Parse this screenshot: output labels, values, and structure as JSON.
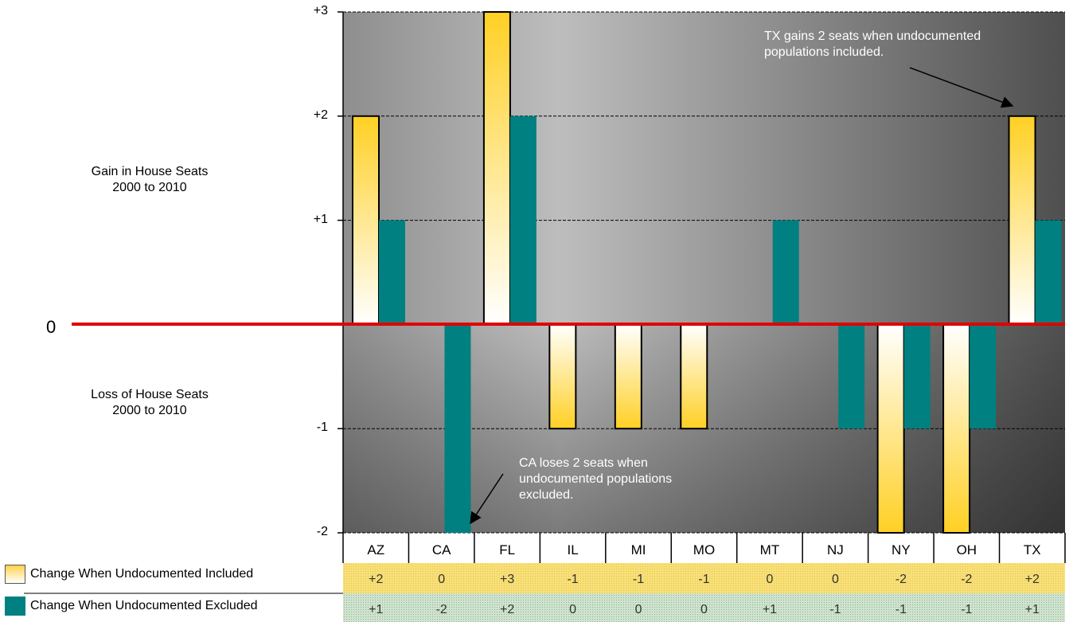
{
  "chart_data": {
    "type": "bar",
    "categories": [
      "AZ",
      "CA",
      "FL",
      "IL",
      "MI",
      "MO",
      "MT",
      "NJ",
      "NY",
      "OH",
      "TX"
    ],
    "series": [
      {
        "name": "Change When Undocumented Included",
        "values": [
          2,
          0,
          3,
          -1,
          -1,
          -1,
          0,
          0,
          -2,
          -2,
          2
        ],
        "labels": [
          "+2",
          "0",
          "+3",
          "-1",
          "-1",
          "-1",
          "0",
          "0",
          "-2",
          "-2",
          "+2"
        ]
      },
      {
        "name": "Change When Undocumented Excluded",
        "values": [
          1,
          -2,
          2,
          0,
          0,
          0,
          1,
          -1,
          -1,
          -1,
          1
        ],
        "labels": [
          "+1",
          "-2",
          "+2",
          "0",
          "0",
          "0",
          "+1",
          "-1",
          "-1",
          "-1",
          "+1"
        ]
      }
    ],
    "ylim": [
      -2,
      3
    ],
    "yticks": [
      "+3",
      "+2",
      "+1",
      "-1",
      "-2"
    ],
    "zero_label": "0",
    "gain_label_line1": "Gain in House Seats",
    "gain_label_line2": "2000 to 2010",
    "loss_label_line1": "Loss of House Seats",
    "loss_label_line2": "2000 to 2010",
    "annotations": [
      {
        "line1": "TX gains 2 seats when undocumented",
        "line2": "populations included."
      },
      {
        "line1": "CA loses 2 seats when",
        "line2": "undocumented populations",
        "line3": "excluded."
      }
    ],
    "colors": {
      "included_top": "#ffd24a",
      "included_bottom": "#ffffff",
      "excluded": "#008080",
      "zero_line": "#e00000",
      "table_included": "#f6e27a",
      "table_excluded": "#c3d9c3"
    }
  }
}
